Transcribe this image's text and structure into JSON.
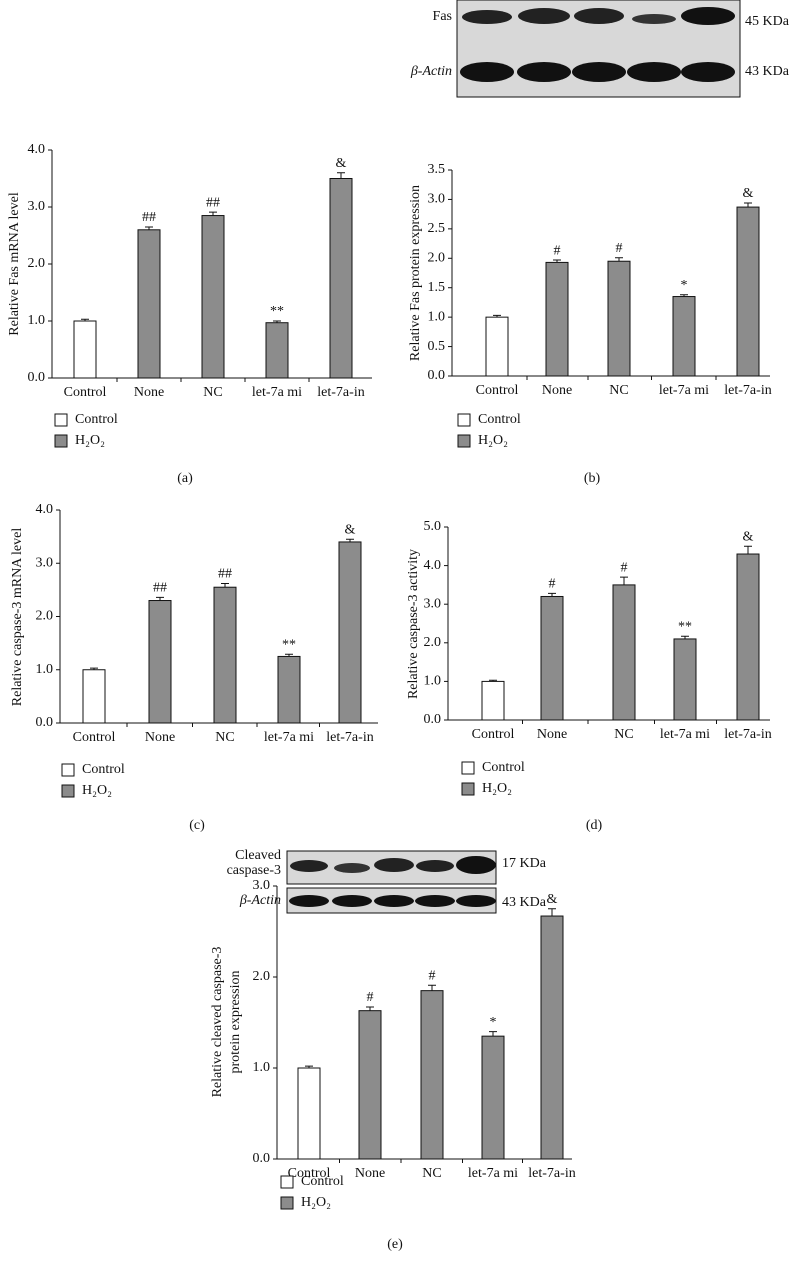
{
  "blots": [
    {
      "rows": [
        {
          "label": "Fas",
          "size": "45 KDa"
        },
        {
          "label": "β-Actin",
          "size": "43 KDa"
        }
      ]
    },
    {
      "rows": [
        {
          "label": [
            "Cleaved",
            "caspase-3"
          ],
          "size": "17 KDa"
        },
        {
          "label": "β-Actin",
          "size": "43 KDa"
        }
      ]
    }
  ],
  "chart_data": [
    {
      "type": "bar",
      "panel": "(a)",
      "y_label": "Relative Fas mRNA level",
      "categories": [
        "Control",
        "None",
        "NC",
        "let-7a mi",
        "let-7a-in"
      ],
      "series": [
        {
          "name": "Control",
          "color": "#ffffff",
          "values": [
            1.0,
            null,
            null,
            null,
            null
          ],
          "errors": [
            0.03,
            null,
            null,
            null,
            null
          ]
        },
        {
          "name": "H₂O₂",
          "color": "#8c8c8c",
          "values": [
            null,
            2.6,
            2.85,
            0.97,
            3.5
          ],
          "errors": [
            null,
            0.05,
            0.06,
            0.03,
            0.1
          ]
        }
      ],
      "annotations": [
        null,
        "##",
        "##",
        "**",
        "&"
      ],
      "ylim": [
        0,
        4
      ],
      "yticks": [
        {
          "value": 0,
          "label": "0.0"
        },
        {
          "value": 1,
          "label": "1.0"
        },
        {
          "value": 2,
          "label": "2.0"
        },
        {
          "value": 3,
          "label": "3.0"
        },
        {
          "value": 4,
          "label": "4.0"
        }
      ]
    },
    {
      "type": "bar",
      "panel": "(b)",
      "y_label": "Relative Fas protein expression",
      "categories": [
        "Control",
        "None",
        "NC",
        "let-7a mi",
        "let-7a-in"
      ],
      "series": [
        {
          "name": "Control",
          "color": "#ffffff",
          "values": [
            1.0,
            null,
            null,
            null,
            null
          ],
          "errors": [
            0.03,
            null,
            null,
            null,
            null
          ]
        },
        {
          "name": "H₂O₂",
          "color": "#8c8c8c",
          "values": [
            null,
            1.93,
            1.95,
            1.35,
            2.87
          ],
          "errors": [
            null,
            0.04,
            0.06,
            0.03,
            0.07
          ]
        }
      ],
      "annotations": [
        null,
        "#",
        "#",
        "*",
        "&"
      ],
      "ylim": [
        0,
        3.5
      ],
      "yticks": [
        {
          "value": 0,
          "label": "0.0"
        },
        0.5,
        {
          "value": 1,
          "label": "1.0"
        },
        1.5,
        {
          "value": 2,
          "label": "2.0"
        },
        2.5,
        {
          "value": 3,
          "label": "3.0"
        },
        3.5
      ]
    },
    {
      "type": "bar",
      "panel": "(c)",
      "y_label": "Relative caspase-3 mRNA level",
      "categories": [
        "Control",
        "None",
        "NC",
        "let-7a mi",
        "let-7a-in"
      ],
      "series": [
        {
          "name": "Control",
          "color": "#ffffff",
          "values": [
            1.0,
            null,
            null,
            null,
            null
          ],
          "errors": [
            0.03,
            null,
            null,
            null,
            null
          ]
        },
        {
          "name": "H₂O₂",
          "color": "#8c8c8c",
          "values": [
            null,
            2.3,
            2.55,
            1.25,
            3.4
          ],
          "errors": [
            null,
            0.06,
            0.07,
            0.04,
            0.05
          ]
        }
      ],
      "annotations": [
        null,
        "##",
        "##",
        "**",
        "&"
      ],
      "ylim": [
        0,
        4
      ],
      "yticks": [
        {
          "value": 0,
          "label": "0.0"
        },
        {
          "value": 1,
          "label": "1.0"
        },
        {
          "value": 2,
          "label": "2.0"
        },
        {
          "value": 3,
          "label": "3.0"
        },
        {
          "value": 4,
          "label": "4.0"
        }
      ]
    },
    {
      "type": "bar",
      "panel": "(d)",
      "y_label": "Relative caspase-3 activity",
      "categories": [
        "Control",
        "None",
        "NC",
        "let-7a mi",
        "let-7a-in"
      ],
      "series": [
        {
          "name": "Control",
          "color": "#ffffff",
          "values": [
            1.0,
            null,
            null,
            null,
            null
          ],
          "errors": [
            0.03,
            null,
            null,
            null,
            null
          ]
        },
        {
          "name": "H₂O₂",
          "color": "#8c8c8c",
          "values": [
            null,
            3.2,
            3.5,
            2.1,
            4.3
          ],
          "errors": [
            null,
            0.08,
            0.2,
            0.07,
            0.2
          ]
        }
      ],
      "annotations": [
        null,
        "#",
        "#",
        "**",
        "&"
      ],
      "ylim": [
        0,
        5
      ],
      "yticks": [
        {
          "value": 0,
          "label": "0.0"
        },
        {
          "value": 1,
          "label": "1.0"
        },
        {
          "value": 2,
          "label": "2.0"
        },
        {
          "value": 3,
          "label": "3.0"
        },
        {
          "value": 4,
          "label": "4.0"
        },
        {
          "value": 5,
          "label": "5.0"
        }
      ]
    },
    {
      "type": "bar",
      "panel": "(e)",
      "y_label": [
        "Relative cleaved caspase-3",
        "protein expression"
      ],
      "categories": [
        "Control",
        "None",
        "NC",
        "let-7a mi",
        "let-7a-in"
      ],
      "series": [
        {
          "name": "Control",
          "color": "#ffffff",
          "values": [
            1.0,
            null,
            null,
            null,
            null
          ],
          "errors": [
            0.02,
            null,
            null,
            null,
            null
          ]
        },
        {
          "name": "H₂O₂",
          "color": "#8c8c8c",
          "values": [
            null,
            1.63,
            1.85,
            1.35,
            2.67
          ],
          "errors": [
            null,
            0.04,
            0.06,
            0.05,
            0.08
          ]
        }
      ],
      "annotations": [
        null,
        "#",
        "#",
        "*",
        "&"
      ],
      "ylim": [
        0,
        3
      ],
      "yticks": [
        {
          "value": 0,
          "label": "0.0"
        },
        {
          "value": 1,
          "label": "1.0"
        },
        {
          "value": 2,
          "label": "2.0"
        },
        {
          "value": 3,
          "label": "3.0"
        }
      ]
    }
  ]
}
